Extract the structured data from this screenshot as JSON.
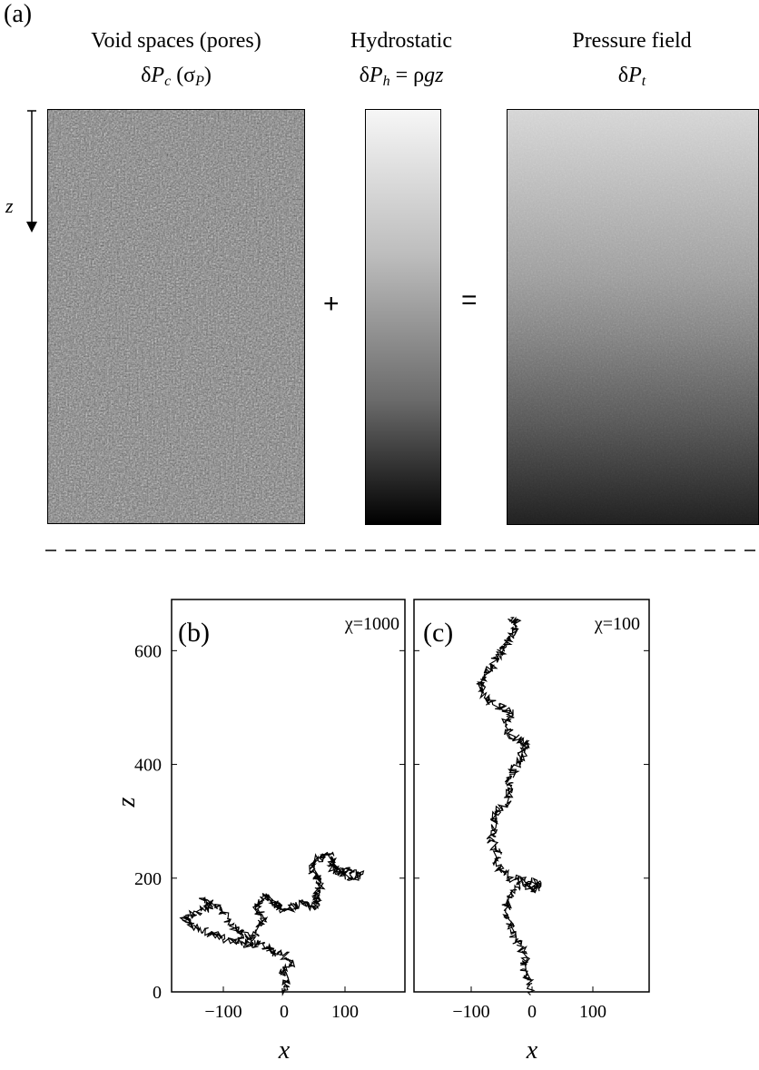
{
  "panel_a": {
    "label": "(a)",
    "titles": [
      "Void spaces (pores)",
      "Hydrostatic",
      "Pressure field"
    ],
    "formulas": {
      "capillary": {
        "d": "δ",
        "P": "P",
        "sub": "c",
        "rest": "(σ",
        "rsub": "P",
        "close": ")"
      },
      "hydro": {
        "d": "δ",
        "P": "P",
        "sub": "h",
        "eq": "= ρ",
        "gz": "gz"
      },
      "total": {
        "d": "δ",
        "P": "P",
        "sub": "t"
      }
    },
    "z_label": "z",
    "plus": "+",
    "equals": "="
  },
  "panel_b": {
    "label": "(b)",
    "chi": "χ=1000"
  },
  "panel_c": {
    "label": "(c)",
    "chi": "χ=100"
  },
  "axes": {
    "ylabel": "z",
    "xlabel": "x",
    "yticks": [
      "0",
      "200",
      "400",
      "600"
    ],
    "xticks": [
      "−100",
      "0",
      "100"
    ]
  },
  "chart_data": {
    "type": "line",
    "ylim": [
      0,
      700
    ],
    "xlim": [
      -190,
      200
    ],
    "series": [
      {
        "values": [
          [
            0,
            0
          ],
          [
            5,
            20
          ],
          [
            -5,
            35
          ],
          [
            10,
            50
          ],
          [
            0,
            65
          ],
          [
            -20,
            70
          ],
          [
            -25,
            80
          ],
          [
            -45,
            85
          ],
          [
            -55,
            82
          ],
          [
            -70,
            88
          ],
          [
            -90,
            92
          ],
          [
            -110,
            100
          ],
          [
            -125,
            105
          ],
          [
            -150,
            115
          ],
          [
            -165,
            125
          ],
          [
            -155,
            135
          ],
          [
            -130,
            145
          ],
          [
            -120,
            155
          ],
          [
            -135,
            160
          ],
          [
            -110,
            150
          ],
          [
            -95,
            130
          ],
          [
            -80,
            110
          ],
          [
            -65,
            100
          ],
          [
            -50,
            95
          ],
          [
            -40,
            115
          ],
          [
            -35,
            130
          ],
          [
            -45,
            145
          ],
          [
            -40,
            160
          ],
          [
            -30,
            170
          ],
          [
            -20,
            160
          ],
          [
            -10,
            150
          ],
          [
            0,
            145
          ],
          [
            15,
            150
          ],
          [
            30,
            155
          ],
          [
            45,
            150
          ],
          [
            55,
            160
          ],
          [
            50,
            170
          ],
          [
            60,
            185
          ],
          [
            55,
            200
          ],
          [
            45,
            215
          ],
          [
            50,
            230
          ],
          [
            60,
            238
          ],
          [
            75,
            240
          ],
          [
            80,
            225
          ],
          [
            95,
            210
          ],
          [
            110,
            215
          ],
          [
            125,
            210
          ],
          [
            115,
            200
          ],
          [
            100,
            205
          ],
          [
            85,
            215
          ],
          [
            75,
            220
          ]
        ]
      },
      {
        "values": [
          [
            0,
            0
          ],
          [
            -5,
            20
          ],
          [
            -15,
            40
          ],
          [
            -10,
            60
          ],
          [
            -20,
            80
          ],
          [
            -30,
            100
          ],
          [
            -35,
            120
          ],
          [
            -45,
            140
          ],
          [
            -40,
            160
          ],
          [
            -30,
            180
          ],
          [
            -20,
            200
          ],
          [
            -5,
            195
          ],
          [
            10,
            190
          ],
          [
            5,
            180
          ],
          [
            -10,
            185
          ],
          [
            -35,
            200
          ],
          [
            -50,
            215
          ],
          [
            -60,
            230
          ],
          [
            -55,
            250
          ],
          [
            -70,
            265
          ],
          [
            -60,
            285
          ],
          [
            -65,
            305
          ],
          [
            -55,
            320
          ],
          [
            -40,
            335
          ],
          [
            -35,
            355
          ],
          [
            -40,
            370
          ],
          [
            -30,
            390
          ],
          [
            -20,
            405
          ],
          [
            -15,
            420
          ],
          [
            -10,
            435
          ],
          [
            -15,
            440
          ],
          [
            -35,
            450
          ],
          [
            -45,
            470
          ],
          [
            -35,
            490
          ],
          [
            -50,
            500
          ],
          [
            -70,
            510
          ],
          [
            -80,
            525
          ],
          [
            -85,
            545
          ],
          [
            -75,
            560
          ],
          [
            -65,
            575
          ],
          [
            -55,
            590
          ],
          [
            -45,
            605
          ],
          [
            -35,
            620
          ],
          [
            -30,
            635
          ],
          [
            -25,
            650
          ],
          [
            -35,
            658
          ]
        ]
      }
    ]
  }
}
